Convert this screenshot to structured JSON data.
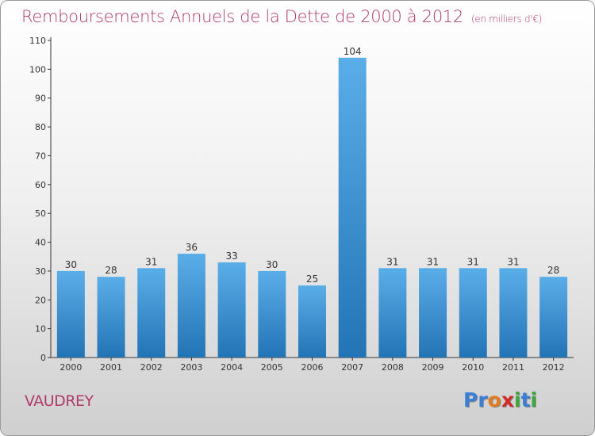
{
  "header": {
    "title": "Remboursements Annuels de la Dette de 2000 à 2012",
    "subtitle": "(en milliers d'€)"
  },
  "footer": {
    "commune": "VAUDREY",
    "logo_letters": [
      {
        "char": "P",
        "color": "#3a7fd5"
      },
      {
        "char": "r",
        "color": "#3a7fd5"
      },
      {
        "char": "o",
        "color": "#e07b1f"
      },
      {
        "char": "x",
        "color": "#d02a2a"
      },
      {
        "char": "i",
        "color": "#3da83d"
      },
      {
        "char": "t",
        "color": "#3a7fd5"
      },
      {
        "char": "i",
        "color": "#3da83d"
      }
    ]
  },
  "colors": {
    "accent": "#b03a6c",
    "bar_top": "#5aaee8",
    "bar_bottom": "#2274b5"
  },
  "chart_data": {
    "type": "bar",
    "title": "Remboursements Annuels de la Dette de 2000 à 2012",
    "subtitle": "(en milliers d'€)",
    "xlabel": "",
    "ylabel": "",
    "categories": [
      "2000",
      "2001",
      "2002",
      "2003",
      "2004",
      "2005",
      "2006",
      "2007",
      "2008",
      "2009",
      "2010",
      "2011",
      "2012"
    ],
    "values": [
      30,
      28,
      31,
      36,
      33,
      30,
      25,
      104,
      31,
      31,
      31,
      31,
      28
    ],
    "ylim": [
      0,
      110
    ],
    "yticks": [
      0,
      10,
      20,
      30,
      40,
      50,
      60,
      70,
      80,
      90,
      100,
      110
    ],
    "grid": false,
    "legend": "none"
  }
}
